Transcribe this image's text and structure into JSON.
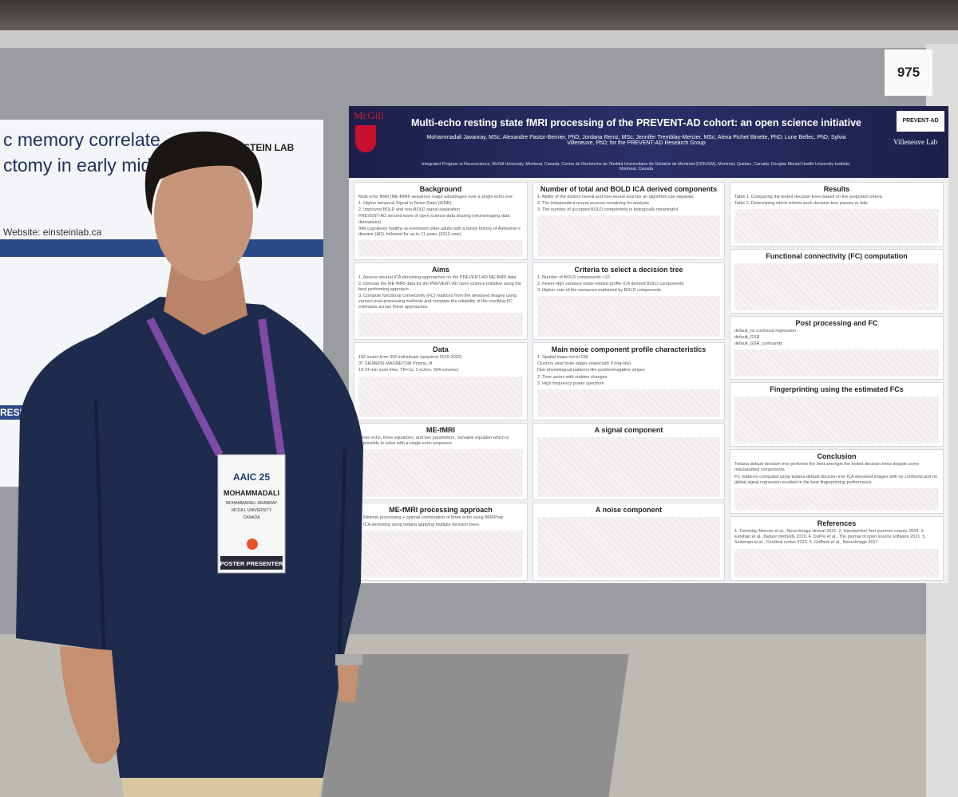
{
  "board_number": "975",
  "left_poster": {
    "title_lines": [
      "c memory correlate",
      "ctomy in early midlife"
    ],
    "lab": "EINSTEIN LAB",
    "website": "Website: einsteinlab.ca",
    "section": "RESUL"
  },
  "poster": {
    "title": "Multi-echo resting state fMRI processing of the PREVENT-AD cohort: an open science initiative",
    "authors": "Mohammadali Javanray, MSc; Alexandre Pastor-Bernier, PhD; Jordana Remz, MSc; Jennifer Tremblay-Mercier, MSc; Alexa Pichet Binette, PhD; Lune Bellec, PhD; Sylvia Villeneuve, PhD; for the PREVENT-AD Research Group",
    "affiliations": "Integrated Program in Neuroscience, McGill University, Montreal, Canada; Centre de Recherche de l'Institut Universitaire de Gériatrie de Montréal (CRIUGM), Montréal, Québec, Canada; Douglas Mental Health University Institute, Montreal, Canada",
    "logo_left": "McGill",
    "logo_right": "PREVENT-AD",
    "logo_right2": "Villeneuve Lab",
    "columns": [
      [
        {
          "heading": "Background",
          "items": [
            "Multi echo fMRI (ME-fMRI) sequence major advantages over a single echo one:",
            "1. Higher temporal Signal to Noise Ratio (tSNR)",
            "2. Improved BOLD and non-BOLD signal separation",
            "PREVENT-AD second wave of open science data sharing (neuroimaging data derivatives)",
            "348 cognitively healthy at enrolment older adults with a family history of Alzheimer's disease (AD), followed for up to 11 years (2012-now)"
          ]
        },
        {
          "heading": "Aims",
          "items": [
            "1. Assess several ICA denoising approaches on the PREVENT-AD ME-fMRI data",
            "2. Denoise the ME-fMRI data for the PREVENT-AD open science initiative using the best performing approach",
            "3. Compute functional connectivity (FC) matrices from the denoised images using various post-processing methods and compare the reliability of the resulting FC estimates across these approaches"
          ]
        },
        {
          "heading": "Data",
          "items": [
            "182 scans from 306 individuals (acquired 2019-2022)",
            "3T SIEMENS MAGNETOM Prisma_fit",
            "10:24 min scan time, TR=1s, 3 echos, 604 volumes"
          ]
        },
        {
          "heading": "ME-fMRI",
          "items": [
            "Three echo, three equations, and two parameters. Solvable equation which is impossible to solve with a single echo sequence"
          ]
        },
        {
          "heading": "ME-fMRI processing approach",
          "items": [
            "1. Minimal processing + optimal combination of three echo using fMRIPrep",
            "2. ICA denoising using tedana applying multiple decision trees"
          ]
        }
      ],
      [
        {
          "heading": "Number of total and BOLD ICA derived components",
          "items": [
            "1. Ability of the distinct neural and non-neural sources an algorithm can separate",
            "2. The independent neural sources remaining for analysis",
            "3. The number of accepted BOLD components is biologically meaningful"
          ]
        },
        {
          "heading": "Criteria to select a decision tree",
          "items": [
            "1. Number of BOLD components >10",
            "2. Fewer high variance noise-related profile ICA derived BOLD components",
            "3. Higher sum of the variances explained by BOLD components"
          ]
        },
        {
          "heading": "Main noise component profile characteristics",
          "items": [
            "1. Spatial maps not in GM",
            "Clusters near brain edges (especially if ring-like)",
            "Non-physiological patterns like positive/negative stripes",
            "2. Time series with sudden changes",
            "3. High frequency power spectrum"
          ]
        },
        {
          "heading": "A signal component",
          "items": []
        },
        {
          "heading": "A noise component",
          "items": []
        }
      ],
      [
        {
          "heading": "Results",
          "items": [
            "Table 1. Comparing the tested decision trees based on the proposed criteria",
            "Table 2. Determining which criteria each decision tree passes or fails"
          ]
        },
        {
          "heading": "Functional connectivity (FC) computation",
          "items": []
        },
        {
          "heading": "Post processing and FC",
          "items": [
            "default_no confound regression",
            "default_GSR",
            "default_GSR_confounds"
          ]
        },
        {
          "heading": "Fingerprinting using the estimated FCs",
          "items": []
        },
        {
          "heading": "Conclusion",
          "items": [
            "Tedana default decision tree performs the best amongst the tested decision trees despite some misclassified components.",
            "FC matrices computed using tedana default decision tree ICA denoised images with no confound and no global signal regression resulted in the best fingerprinting performance."
          ]
        },
        {
          "heading": "References",
          "items": [
            "1. Tremblay-Mercier et al., NeuroImage clinical 2021. 2. Handwerker fmri summer course 2024. 3. Esteban et al., Nature methods 2019. 4. DuPre et al., The journal of open source software 2021. 5. Seitzman et al., Cerebral cortex 2023. 6. Griffanti et al., NeuroImage 2017"
          ]
        }
      ]
    ]
  },
  "badge": {
    "event": "AAIC 25",
    "first_name": "MOHAMMADALI",
    "full_name": "MOHAMMADALI JAVANRAY",
    "affiliation": "MCGILL UNIVERSITY",
    "country": "CANADA",
    "role": "POSTER PRESENTER"
  }
}
